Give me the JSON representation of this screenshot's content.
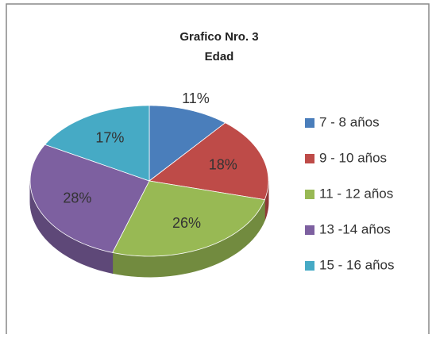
{
  "chart_data": {
    "type": "pie",
    "title": "Grafico Nro. 3",
    "subtitle": "Edad",
    "categories": [
      "7 - 8 años",
      "9 - 10 años",
      "11 - 12 años",
      "13 -14 años",
      "15 - 16 años"
    ],
    "values": [
      11,
      18,
      26,
      28,
      17
    ],
    "value_labels": [
      "11%",
      "18%",
      "26%",
      "28%",
      "17%"
    ],
    "colors": [
      "#4a7ebb",
      "#be4b48",
      "#98b954",
      "#7d60a0",
      "#46aac5"
    ],
    "legend": "right"
  }
}
